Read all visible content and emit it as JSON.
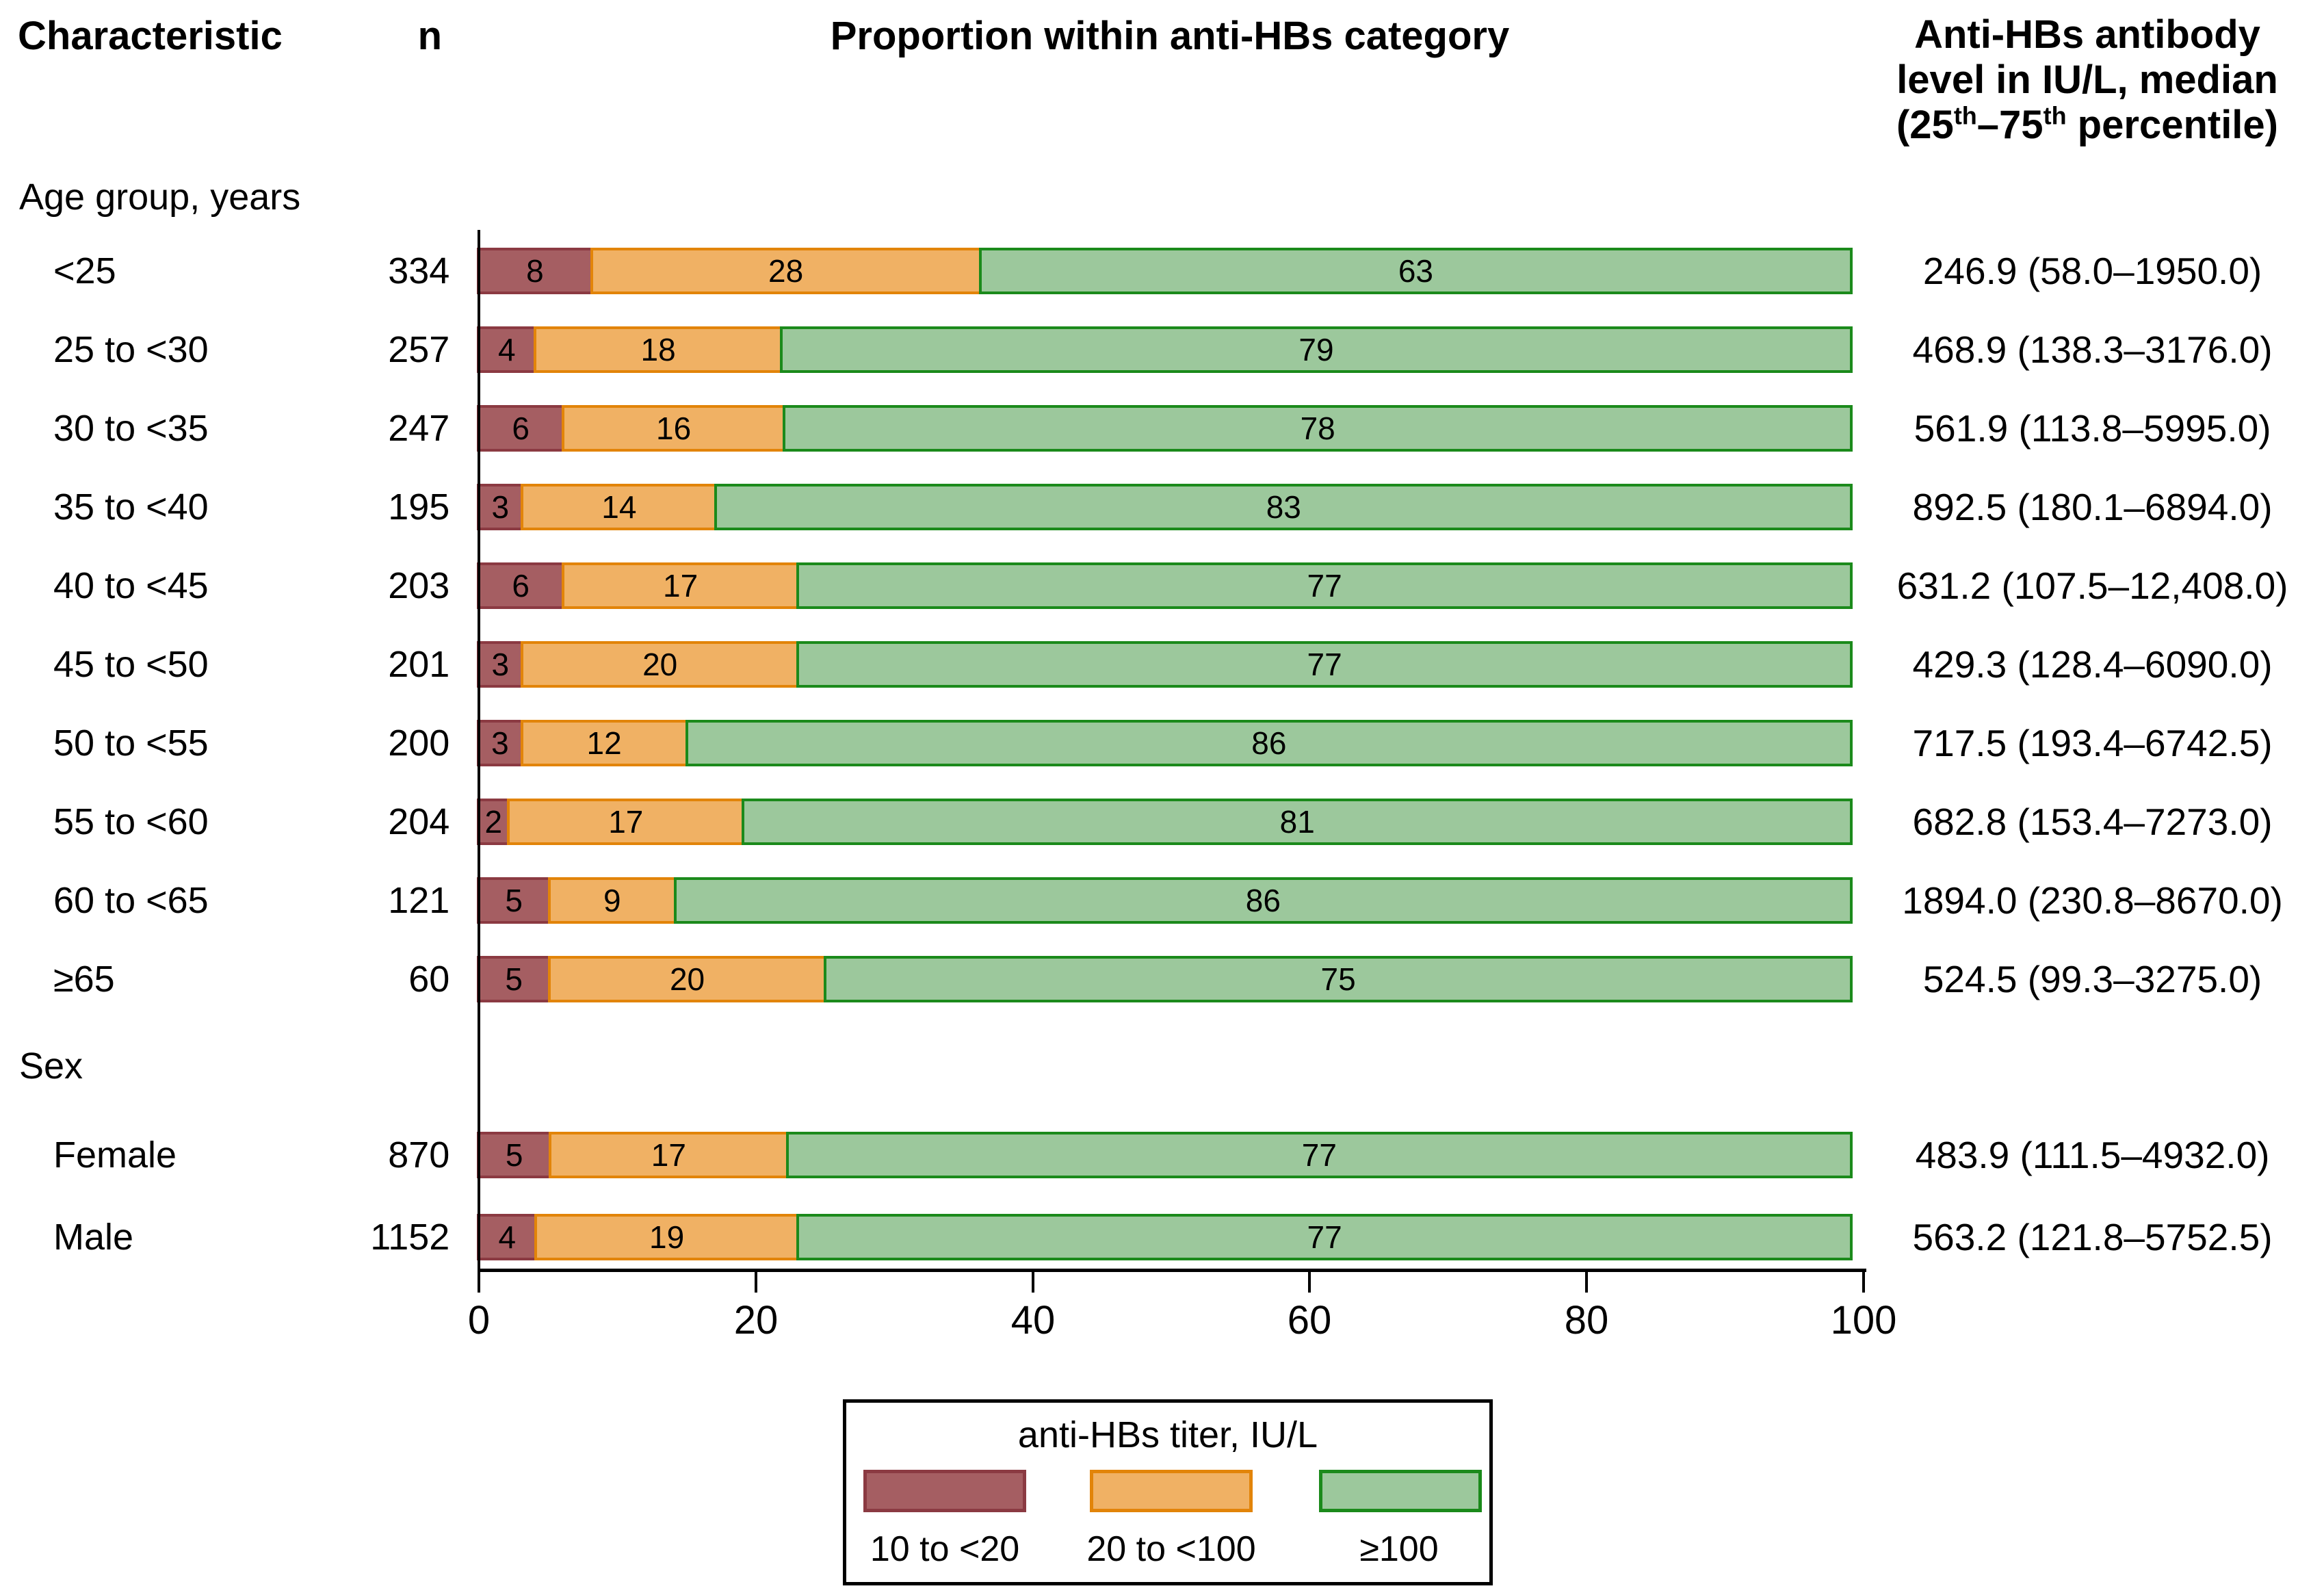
{
  "header": {
    "characteristic": "Characteristic",
    "n": "n",
    "proportion": "Proportion within anti-HBs category",
    "antibody_line1": "Anti-HBs antibody",
    "antibody_line2": "level in IU/L, median",
    "antibody_line3": {
      "open": "(25",
      "sup1": "th",
      "mid": "–75",
      "sup2": "th",
      "close": " percentile)"
    }
  },
  "sections": [
    {
      "label": "Age group, years",
      "rows": [
        {
          "label": "<25",
          "n": "334",
          "values": [
            8,
            28,
            63
          ],
          "median": "246.9 (58.0–1950.0)"
        },
        {
          "label": "25 to <30",
          "n": "257",
          "values": [
            4,
            18,
            79
          ],
          "median": "468.9 (138.3–3176.0)"
        },
        {
          "label": "30 to <35",
          "n": "247",
          "values": [
            6,
            16,
            78
          ],
          "median": "561.9 (113.8–5995.0)"
        },
        {
          "label": "35 to <40",
          "n": "195",
          "values": [
            3,
            14,
            83
          ],
          "median": "892.5 (180.1–6894.0)"
        },
        {
          "label": "40 to <45",
          "n": "203",
          "values": [
            6,
            17,
            77
          ],
          "median": "631.2 (107.5–12,408.0)"
        },
        {
          "label": "45 to <50",
          "n": "201",
          "values": [
            3,
            20,
            77
          ],
          "median": "429.3 (128.4–6090.0)"
        },
        {
          "label": "50 to <55",
          "n": "200",
          "values": [
            3,
            12,
            86
          ],
          "median": "717.5 (193.4–6742.5)"
        },
        {
          "label": "55 to <60",
          "n": "204",
          "values": [
            2,
            17,
            81
          ],
          "median": "682.8 (153.4–7273.0)"
        },
        {
          "label": "60 to <65",
          "n": "121",
          "values": [
            5,
            9,
            86
          ],
          "median": "1894.0 (230.8–8670.0)"
        },
        {
          "label": "≥65",
          "n": "60",
          "values": [
            5,
            20,
            75
          ],
          "median": "524.5 (99.3–3275.0)"
        }
      ]
    },
    {
      "label": "Sex",
      "rows": [
        {
          "label": "Female",
          "n": "870",
          "values": [
            5,
            17,
            77
          ],
          "median": "483.9 (111.5–4932.0)"
        },
        {
          "label": "Male",
          "n": "1152",
          "values": [
            4,
            19,
            77
          ],
          "median": "563.2 (121.8–5752.5)"
        }
      ]
    }
  ],
  "axis": {
    "ticks": [
      "0",
      "20",
      "40",
      "60",
      "80",
      "100"
    ]
  },
  "legend": {
    "title": "anti-HBs titer, IU/L",
    "items": [
      "10 to <20",
      "20 to <100",
      "≥100"
    ]
  },
  "colors": {
    "low_fill": "#a55e62",
    "low_border": "#8b3a42",
    "mid_fill": "#f0b164",
    "mid_border": "#e28409",
    "high_fill": "#9cc89c",
    "high_border": "#1b8a1b"
  },
  "chart_data": {
    "type": "bar",
    "orientation": "horizontal-stacked",
    "title": "Proportion within anti-HBs category",
    "categories": [
      "<25",
      "25 to <30",
      "30 to <35",
      "35 to <40",
      "40 to <45",
      "45 to <50",
      "50 to <55",
      "55 to <60",
      "60 to <65",
      "≥65",
      "Female",
      "Male"
    ],
    "category_groups": [
      "Age group, years",
      "Sex"
    ],
    "n": [
      334,
      257,
      247,
      195,
      203,
      201,
      200,
      204,
      121,
      60,
      870,
      1152
    ],
    "series": [
      {
        "name": "10 to <20",
        "color": "#a55e62",
        "values": [
          8,
          4,
          6,
          3,
          6,
          3,
          3,
          2,
          5,
          5,
          5,
          4
        ]
      },
      {
        "name": "20 to <100",
        "color": "#f0b164",
        "values": [
          28,
          18,
          16,
          14,
          17,
          20,
          12,
          17,
          9,
          20,
          17,
          19
        ]
      },
      {
        "name": "≥100",
        "color": "#9cc89c",
        "values": [
          63,
          79,
          78,
          83,
          77,
          77,
          86,
          81,
          86,
          75,
          77,
          77
        ]
      }
    ],
    "medians": [
      "246.9 (58.0–1950.0)",
      "468.9 (138.3–3176.0)",
      "561.9 (113.8–5995.0)",
      "892.5 (180.1–6894.0)",
      "631.2 (107.5–12,408.0)",
      "429.3 (128.4–6090.0)",
      "717.5 (193.4–6742.5)",
      "682.8 (153.4–7273.0)",
      "1894.0 (230.8–8670.0)",
      "524.5 (99.3–3275.0)",
      "483.9 (111.5–4932.0)",
      "563.2 (121.8–5752.5)"
    ],
    "median_header": "Anti-HBs antibody level in IU/L, median (25th–75th percentile)",
    "xlim": [
      0,
      100
    ],
    "xticks": [
      0,
      20,
      40,
      60,
      80,
      100
    ],
    "grid": false,
    "legend_title": "anti-HBs titer, IU/L",
    "legend_position": "bottom"
  }
}
